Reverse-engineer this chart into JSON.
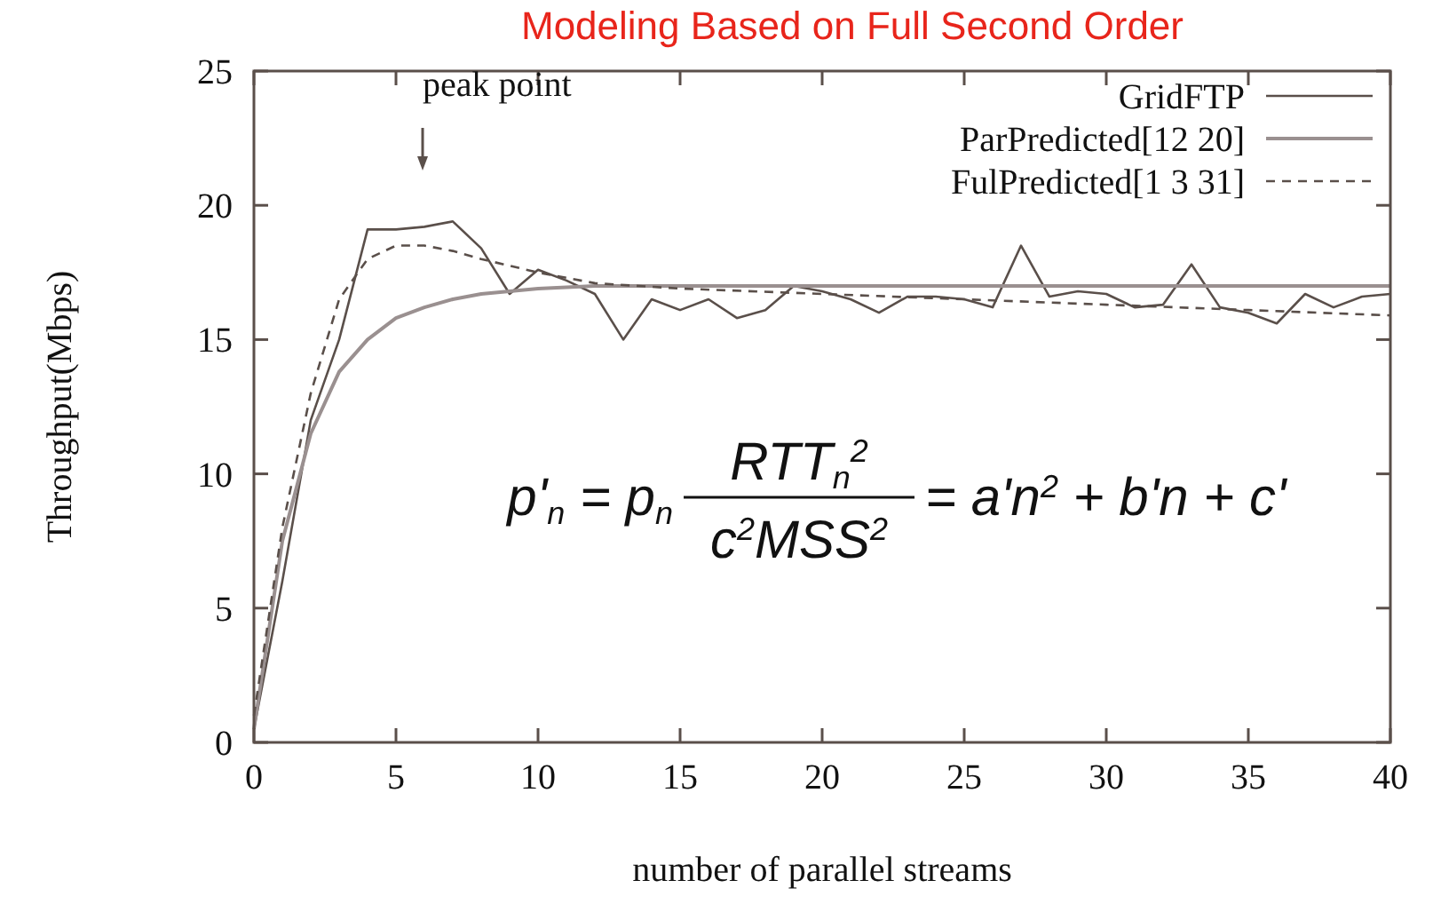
{
  "chart_data": {
    "type": "line",
    "title": "Modeling Based on Full Second Order",
    "xlabel": "number of parallel streams",
    "ylabel": "Throughput(Mbps)",
    "x": [
      0,
      1,
      2,
      3,
      4,
      5,
      6,
      7,
      8,
      9,
      10,
      11,
      12,
      13,
      14,
      15,
      16,
      17,
      18,
      19,
      20,
      21,
      22,
      23,
      24,
      25,
      26,
      27,
      28,
      29,
      30,
      31,
      32,
      33,
      34,
      35,
      36,
      37,
      38,
      39,
      40
    ],
    "series": [
      {
        "name": "GridFTP",
        "color": "#5a4f4a",
        "line_style": "solid",
        "values": [
          0.5,
          6,
          12,
          15,
          19.1,
          19.1,
          19.2,
          19.4,
          18.4,
          16.7,
          17.6,
          17.2,
          16.7,
          15.0,
          16.5,
          16.1,
          16.5,
          15.8,
          16.1,
          17.0,
          16.8,
          16.5,
          16.0,
          16.6,
          16.6,
          16.5,
          16.2,
          18.5,
          16.6,
          16.8,
          16.7,
          16.2,
          16.3,
          17.8,
          16.2,
          16.0,
          15.6,
          16.7,
          16.2,
          16.6,
          16.7
        ]
      },
      {
        "name": "ParPredicted[12 20]",
        "color": "#9a9090",
        "line_style": "solid",
        "x": [
          0,
          1,
          2,
          3,
          4,
          5,
          6,
          7,
          8,
          10,
          12,
          15,
          20,
          25,
          30,
          35,
          40
        ],
        "values": [
          0.5,
          7.5,
          11.5,
          13.8,
          15.0,
          15.8,
          16.2,
          16.5,
          16.7,
          16.9,
          17.0,
          17.0,
          17.0,
          17.0,
          17.0,
          17.0,
          17.0
        ]
      },
      {
        "name": "FulPredicted[1 3 31]",
        "color": "#5a4f4a",
        "line_style": "dashed",
        "x": [
          0,
          1,
          2,
          3,
          4,
          5,
          6,
          7,
          8,
          10,
          12,
          15,
          20,
          25,
          30,
          35,
          40
        ],
        "values": [
          1,
          8,
          13,
          16.5,
          18,
          18.5,
          18.5,
          18.3,
          18.0,
          17.5,
          17.1,
          16.9,
          16.7,
          16.5,
          16.3,
          16.1,
          15.9
        ]
      }
    ],
    "xlim": [
      0,
      40
    ],
    "xticks": [
      0,
      5,
      10,
      15,
      20,
      25,
      30,
      35,
      40
    ],
    "ylim": [
      0,
      25
    ],
    "yticks": [
      0,
      5,
      10,
      15,
      20,
      25
    ],
    "legend": "top right",
    "grid": false,
    "marker": "none",
    "annotations": [
      "peak point",
      "p'$_{n}$ = p$_{n}$",
      "RTT$_{n}$$^{2}$",
      "c$^{2}$MSS$^{2}$",
      "= a'n$^{2}$ + b'n + c'"
    ]
  }
}
